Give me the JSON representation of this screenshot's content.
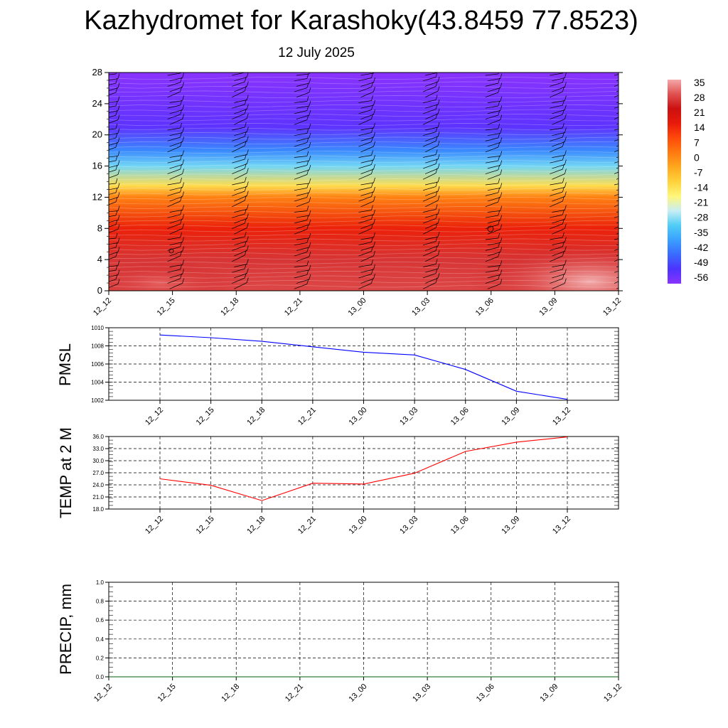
{
  "title": "Kazhydromet for Karashoky(43.8459 77.8523)",
  "subtitle": "12 July 2025",
  "time_labels": [
    "12_12",
    "12_15",
    "12_18",
    "12_21",
    "13_00",
    "13_03",
    "13_06",
    "13_09",
    "13_12"
  ],
  "chart_data": [
    {
      "type": "heatmap",
      "title": "",
      "xlabel": "",
      "ylabel": "",
      "x": [
        "12_12",
        "12_15",
        "12_18",
        "12_21",
        "13_00",
        "13_03",
        "13_06",
        "13_09",
        "13_12"
      ],
      "y_ticks": [
        0,
        4,
        8,
        12,
        16,
        20,
        24,
        28
      ],
      "ylim": [
        0,
        28
      ],
      "colorbar": {
        "labels": [
          "35",
          "28",
          "21",
          "14",
          "7",
          "0",
          "-7",
          "-14",
          "-21",
          "-28",
          "-35",
          "-42",
          "-49",
          "-56"
        ],
        "range": [
          -60,
          38
        ],
        "colors": [
          "#8a33ff",
          "#4d33ff",
          "#3a6aff",
          "#3aa0ff",
          "#50cdf5",
          "#c8eef5",
          "#fff77a",
          "#ffd23c",
          "#ffa81e",
          "#ff7a10",
          "#ff4a0a",
          "#e81a0a",
          "#cc1010",
          "#e05050",
          "#f4a8a8"
        ]
      },
      "temperature_profile": [
        {
          "level": 0,
          "value": 30
        },
        {
          "level": 4,
          "value": 28
        },
        {
          "level": 8,
          "value": 16
        },
        {
          "level": 12,
          "value": 2
        },
        {
          "level": 13.5,
          "value": -13
        },
        {
          "level": 16,
          "value": -30
        },
        {
          "level": 18,
          "value": -42
        },
        {
          "level": 21,
          "value": -55
        },
        {
          "level": 28,
          "value": -60
        }
      ],
      "wind_barbs": true,
      "grid": false
    },
    {
      "type": "line",
      "ylabel": "PMSL",
      "x": [
        "12_12",
        "12_15",
        "12_18",
        "12_21",
        "13_00",
        "13_03",
        "13_06",
        "13_09",
        "13_12"
      ],
      "series": [
        {
          "values": [
            1009.2,
            1008.9,
            1008.5,
            1007.9,
            1007.3,
            1007.0,
            1005.4,
            1003.0,
            1002.1
          ],
          "color": "#0000ff"
        }
      ],
      "ylim": [
        1002,
        1010
      ],
      "y_ticks": [
        "1002",
        "1004",
        "1006",
        "1008",
        "1010"
      ],
      "grid": true
    },
    {
      "type": "line",
      "ylabel": "TEMP at 2 M",
      "x": [
        "12_12",
        "12_15",
        "12_18",
        "12_21",
        "13_00",
        "13_03",
        "13_06",
        "13_09",
        "13_12"
      ],
      "series": [
        {
          "values": [
            25.5,
            23.9,
            20.1,
            24.4,
            24.2,
            26.9,
            32.3,
            34.6,
            35.9
          ],
          "color": "#ff0000"
        }
      ],
      "ylim": [
        18,
        36
      ],
      "y_ticks": [
        "18.0",
        "21.0",
        "24.0",
        "27.0",
        "30.0",
        "33.0",
        "36.0"
      ],
      "grid": true
    },
    {
      "type": "line",
      "ylabel": "PRECIP, mm",
      "x": [
        "12_12",
        "12_15",
        "12_18",
        "12_21",
        "13_00",
        "13_03",
        "13_06",
        "13_09",
        "13_12"
      ],
      "series": [
        {
          "values": [
            0,
            0,
            0,
            0,
            0,
            0,
            0,
            0,
            0
          ],
          "color": "#006400"
        }
      ],
      "ylim": [
        0,
        1
      ],
      "y_ticks": [
        "0.0",
        "0.2",
        "0.4",
        "0.6",
        "0.8",
        "1.0"
      ],
      "grid": true
    }
  ]
}
